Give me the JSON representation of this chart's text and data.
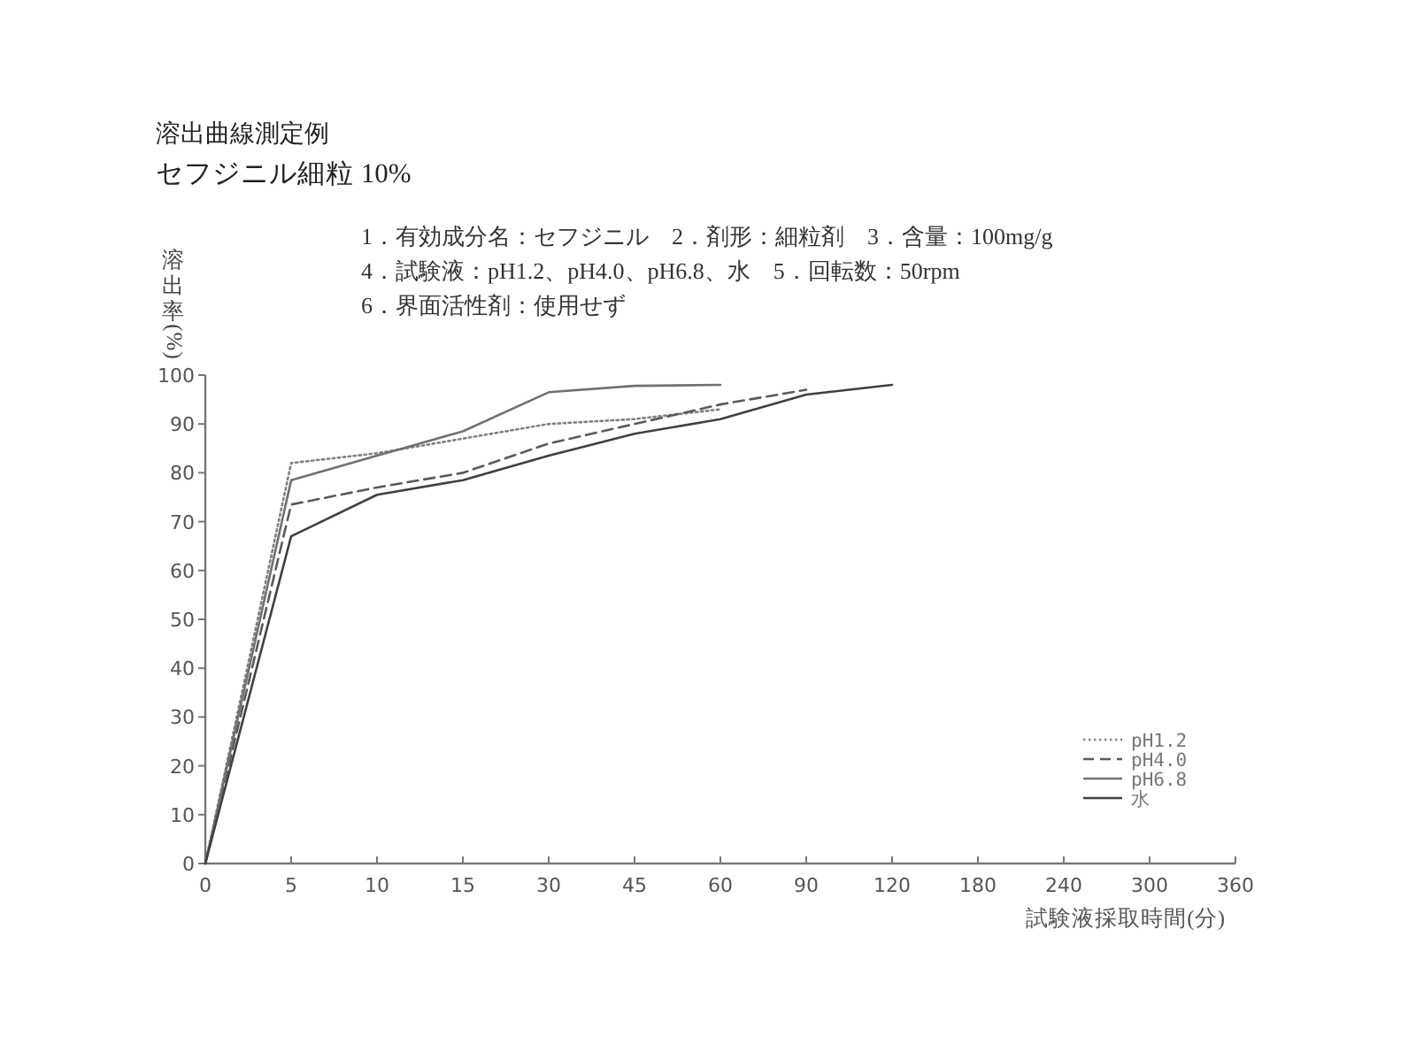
{
  "chart_data": {
    "type": "line",
    "title": "溶出曲線測定例",
    "subtitle": "セフジニル細粒 10%",
    "annotations": [
      "1．有効成分名：セフジニル　2．剤形：細粒剤　3．含量：100mg/g",
      "4．試験液：pH1.2、pH4.0、pH6.8、水　5．回転数：50rpm",
      "6．界面活性剤：使用せず"
    ],
    "xlabel": "試験液採取時間(分)",
    "ylabel": "溶出率(%)",
    "categories": [
      "0",
      "5",
      "10",
      "15",
      "30",
      "45",
      "60",
      "90",
      "120",
      "180",
      "240",
      "300",
      "360"
    ],
    "ylim": [
      0,
      100
    ],
    "yticks": [
      0,
      10,
      20,
      30,
      40,
      50,
      60,
      70,
      80,
      90,
      100
    ],
    "legend": "bottom right",
    "series": [
      {
        "name": "pH1.2",
        "color": "#808080",
        "line_style": "dotted",
        "values": [
          0,
          82,
          84,
          87,
          90,
          91,
          93,
          null,
          null,
          null,
          null,
          null,
          null
        ]
      },
      {
        "name": "pH4.0",
        "color": "#5a5a5a",
        "line_style": "dashed",
        "values": [
          0,
          73.5,
          77,
          80,
          86,
          90,
          94,
          97,
          null,
          null,
          null,
          null,
          null
        ]
      },
      {
        "name": "pH6.8",
        "color": "#707070",
        "line_style": "solid",
        "values": [
          0,
          78.5,
          83.5,
          88.5,
          96.5,
          97.8,
          98,
          null,
          null,
          null,
          null,
          null,
          null
        ]
      },
      {
        "name": "水",
        "color": "#404040",
        "line_style": "solid",
        "values": [
          0,
          67,
          75.5,
          78.5,
          83.5,
          88,
          91,
          96,
          98,
          null,
          null,
          null,
          null
        ]
      }
    ]
  }
}
